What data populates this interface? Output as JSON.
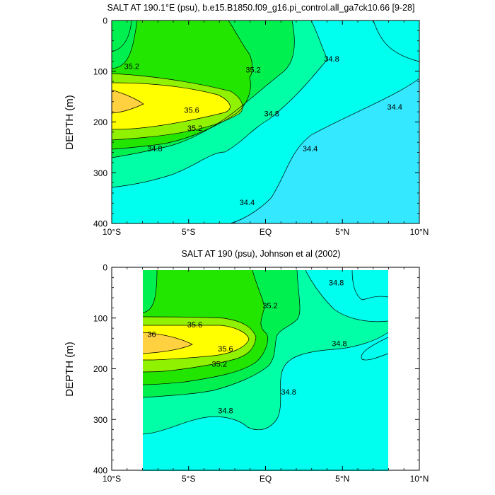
{
  "palette": {
    "c_lt_34_4": "#33e8ff",
    "c_34_4": "#00ffef",
    "c_34_8": "#00ffa6",
    "c_35_0": "#00f050",
    "c_35_2": "#22e500",
    "c_35_4": "#90f100",
    "c_35_6": "#ffff00",
    "c_36_0": "#ffd040",
    "contour_line": "#000000",
    "axis_color": "#000000"
  },
  "chart_data": [
    {
      "type": "contour",
      "title": "SALT AT 190.1°E (psu), b.e15.B1850.f09_g16.pi_control.all_ga7ck10.66 [9-28]",
      "xlabel": "",
      "ylabel": "DEPTH (m)",
      "xlim": [
        -10,
        10
      ],
      "ylim": [
        400,
        0
      ],
      "x_ticks": [
        -10,
        -5,
        0,
        5,
        10
      ],
      "x_tick_labels": [
        "10°S",
        "5°S",
        "EQ",
        "5°N",
        "10°N"
      ],
      "y_ticks": [
        0,
        100,
        200,
        300,
        400
      ],
      "y_tick_labels": [
        "0",
        "100",
        "200",
        "300",
        "400"
      ],
      "contour_levels": [
        34.4,
        34.6,
        34.8,
        35.0,
        35.2,
        35.4,
        35.6,
        36.0
      ],
      "contour_labels": [
        {
          "text": "35.2",
          "lon": -8.7,
          "depth": 90
        },
        {
          "text": "35.2",
          "lon": -0.8,
          "depth": 97
        },
        {
          "text": "34.8",
          "lon": 4.3,
          "depth": 75
        },
        {
          "text": "35.6",
          "lon": -4.8,
          "depth": 176
        },
        {
          "text": "35.2",
          "lon": -4.6,
          "depth": 212
        },
        {
          "text": "34.8",
          "lon": 0.4,
          "depth": 183
        },
        {
          "text": "34.4",
          "lon": 8.4,
          "depth": 170
        },
        {
          "text": "34.8",
          "lon": -7.2,
          "depth": 252
        },
        {
          "text": "34.4",
          "lon": 2.9,
          "depth": 252
        },
        {
          "text": "34.4",
          "lon": -1.2,
          "depth": 358
        }
      ]
    },
    {
      "type": "contour",
      "title": "SALT AT 190 (psu), Johnson et al (2002)",
      "xlabel": "",
      "ylabel": "DEPTH (m)",
      "xlim": [
        -10,
        10
      ],
      "ylim": [
        400,
        0
      ],
      "data_lon_range": [
        -8,
        8
      ],
      "x_ticks": [
        -10,
        -5,
        0,
        5,
        10
      ],
      "x_tick_labels": [
        "10°S",
        "5°S",
        "EQ",
        "5°N",
        "10°N"
      ],
      "y_ticks": [
        0,
        100,
        200,
        300,
        400
      ],
      "y_tick_labels": [
        "0",
        "100",
        "200",
        "300",
        "400"
      ],
      "contour_levels": [
        34.8,
        35.0,
        35.2,
        35.4,
        35.6,
        36.0
      ],
      "contour_labels": [
        {
          "text": "34.8",
          "lon": 4.6,
          "depth": 30
        },
        {
          "text": "35.2",
          "lon": 0.3,
          "depth": 75
        },
        {
          "text": "35.6",
          "lon": -4.6,
          "depth": 113
        },
        {
          "text": "36",
          "lon": -7.4,
          "depth": 132
        },
        {
          "text": "35.6",
          "lon": -2.6,
          "depth": 160
        },
        {
          "text": "35.2",
          "lon": -3.0,
          "depth": 190
        },
        {
          "text": "34.8",
          "lon": 4.8,
          "depth": 150
        },
        {
          "text": "34.8",
          "lon": 1.5,
          "depth": 245
        },
        {
          "text": "34.8",
          "lon": -2.6,
          "depth": 282
        }
      ]
    }
  ]
}
